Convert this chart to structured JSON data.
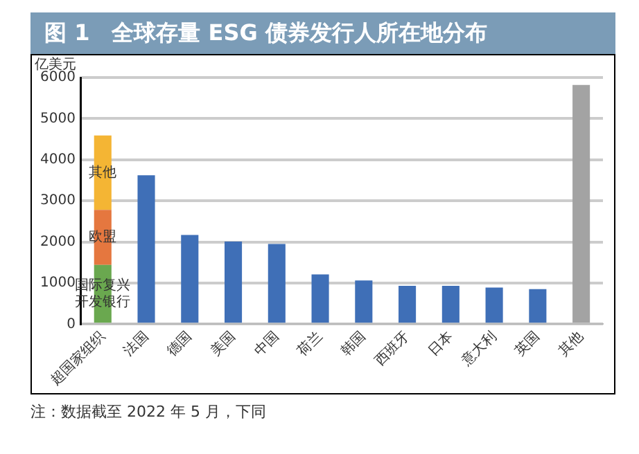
{
  "chart_data": {
    "type": "bar",
    "title": "图 1　全球存量 ESG 债券发行人所在地分布",
    "ylabel": "亿美元",
    "stacked": true,
    "categories": [
      "超国家组织",
      "法国",
      "德国",
      "美国",
      "中国",
      "荷兰",
      "韩国",
      "西班牙",
      "日本",
      "意大利",
      "英国",
      "其他"
    ],
    "series": [
      {
        "name": "国际复兴开发银行",
        "color": "#6aa84f",
        "values": [
          1440,
          null,
          null,
          null,
          null,
          null,
          null,
          null,
          null,
          null,
          null,
          null
        ]
      },
      {
        "name": "欧盟",
        "color": "#e5773f",
        "values": [
          1340,
          null,
          null,
          null,
          null,
          null,
          null,
          null,
          null,
          null,
          null,
          null
        ]
      },
      {
        "name": "其他",
        "color": "#f4b534",
        "values": [
          1810,
          null,
          null,
          null,
          null,
          null,
          null,
          null,
          null,
          null,
          null,
          null
        ]
      },
      {
        "colors": [
          "#3f6fb7",
          "#3f6fb7",
          "#3f6fb7",
          "#3f6fb7",
          "#3f6fb7",
          "#3f6fb7",
          "#3f6fb7",
          "#3f6fb7",
          "#3f6fb7",
          "#3f6fb7",
          "#3f6fb7",
          "#a3a3a3"
        ],
        "values": [
          null,
          3620,
          2170,
          2010,
          1950,
          1210,
          1060,
          930,
          930,
          890,
          850,
          5820
        ]
      }
    ],
    "ylim": [
      0,
      6000
    ],
    "yticks": [
      0,
      1000,
      2000,
      3000,
      4000,
      5000,
      6000
    ],
    "grid": "y",
    "legend": false,
    "annotations": [
      "注：数据截至 2022 年 5 月，下同"
    ]
  }
}
